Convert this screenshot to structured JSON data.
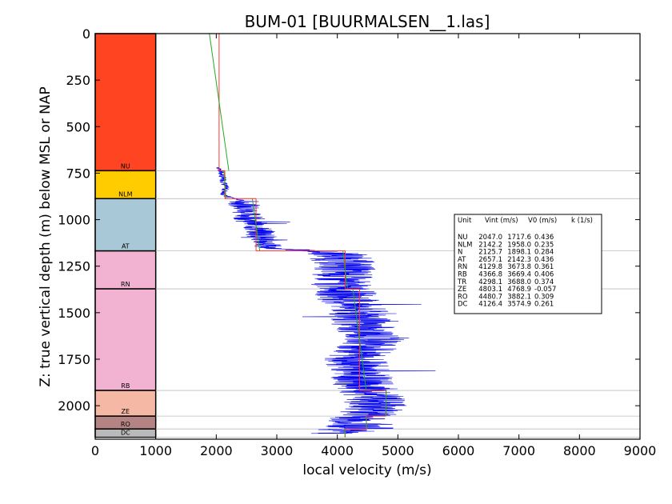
{
  "chart_data": {
    "type": "line",
    "title": "BUM-01 [BUURMALSEN__1.las]",
    "xlabel": "local velocity (m/s)",
    "ylabel": "Z: true vertical depth (m) below MSL or NAP",
    "xlim": [
      0,
      9000
    ],
    "ylim": [
      2180,
      0
    ],
    "x_ticks": [
      "0",
      "1000",
      "2000",
      "3000",
      "4000",
      "5000",
      "6000",
      "7000",
      "8000",
      "9000"
    ],
    "y_ticks": [
      "0",
      "250",
      "500",
      "750",
      "1000",
      "1250",
      "1500",
      "1750",
      "2000"
    ],
    "grid": false,
    "units": [
      {
        "name": "NU",
        "top": 0,
        "base": 737,
        "color": "#ff4422",
        "vint": 2047.0,
        "v0": 1717.6,
        "k": 0.436
      },
      {
        "name": "NLM",
        "top": 737,
        "base": 887,
        "color": "#ffcc00",
        "vint": 2142.2,
        "v0": 1958.0,
        "k": 0.235
      },
      {
        "name": "AT",
        "top": 887,
        "base": 1168,
        "color": "#a8c8d8",
        "vint": 2657.1,
        "v0": 2142.3,
        "k": 0.436
      },
      {
        "name": "RN",
        "top": 1168,
        "base": 1372,
        "color": "#f2b2d2",
        "vint": 4129.8,
        "v0": 3673.8,
        "k": 0.361
      },
      {
        "name": "RB",
        "top": 1372,
        "base": 1918,
        "color": "#f2b2d2",
        "vint": 4366.8,
        "v0": 3669.4,
        "k": 0.406
      },
      {
        "name": "ZE",
        "top": 1918,
        "base": 2056,
        "color": "#f4b8a4",
        "vint": 4803.1,
        "v0": 4768.9,
        "k": -0.057
      },
      {
        "name": "RO",
        "top": 2056,
        "base": 2125,
        "color": "#b48484",
        "vint": 4480.7,
        "v0": 3882.1,
        "k": 0.309
      },
      {
        "name": "DC",
        "top": 2125,
        "base": 2170,
        "color": "#bababa",
        "vint": 4126.4,
        "v0": 3574.9,
        "k": 0.261
      }
    ],
    "legend_table": {
      "header": [
        "Unit",
        "Vint (m/s)",
        "V0 (m/s)",
        "k (1/s)"
      ],
      "rows": [
        {
          "name": "NU",
          "vint": "2047.0",
          "v0": "1717.6",
          "k": "0.436"
        },
        {
          "name": "NLM",
          "vint": "2142.2",
          "v0": "1958.0",
          "k": "0.235"
        },
        {
          "name": "N",
          "vint": "2125.7",
          "v0": "1898.1",
          "k": "0.284"
        },
        {
          "name": "AT",
          "vint": "2657.1",
          "v0": "2142.3",
          "k": "0.436"
        },
        {
          "name": "RN",
          "vint": "4129.8",
          "v0": "3673.8",
          "k": "0.361"
        },
        {
          "name": "RB",
          "vint": "4366.8",
          "v0": "3669.4",
          "k": "0.406"
        },
        {
          "name": "TR",
          "vint": "4298.1",
          "v0": "3688.0",
          "k": "0.374"
        },
        {
          "name": "ZE",
          "vint": "4803.1",
          "v0": "4768.9",
          "k": "-0.057"
        },
        {
          "name": "RO",
          "vint": "4480.7",
          "v0": "3882.1",
          "k": "0.309"
        },
        {
          "name": "DC",
          "vint": "4126.4",
          "v0": "3574.9",
          "k": "0.261"
        }
      ],
      "placement": "right"
    },
    "velocity_log_profile": [
      [
        720,
        2050
      ],
      [
        750,
        2080
      ],
      [
        790,
        2120
      ],
      [
        830,
        2150
      ],
      [
        870,
        2120
      ],
      [
        900,
        2450
      ],
      [
        950,
        2480
      ],
      [
        1000,
        2550
      ],
      [
        1050,
        2700
      ],
      [
        1100,
        2780
      ],
      [
        1150,
        2850
      ],
      [
        1180,
        4000
      ],
      [
        1250,
        4150
      ],
      [
        1300,
        4080
      ],
      [
        1350,
        4050
      ],
      [
        1400,
        4150
      ],
      [
        1450,
        4200
      ],
      [
        1500,
        4350
      ],
      [
        1550,
        4400
      ],
      [
        1600,
        4500
      ],
      [
        1650,
        4600
      ],
      [
        1700,
        4450
      ],
      [
        1750,
        4300
      ],
      [
        1800,
        4350
      ],
      [
        1850,
        4400
      ],
      [
        1900,
        4450
      ],
      [
        1950,
        4600
      ],
      [
        2000,
        4650
      ],
      [
        2050,
        4500
      ],
      [
        2080,
        4300
      ],
      [
        2100,
        4400
      ],
      [
        2150,
        4050
      ]
    ],
    "series_colors": {
      "log": "#0000ee",
      "interval": "#ff3333",
      "trend": "#22aa22",
      "boundary": "#bbbbbb"
    }
  }
}
